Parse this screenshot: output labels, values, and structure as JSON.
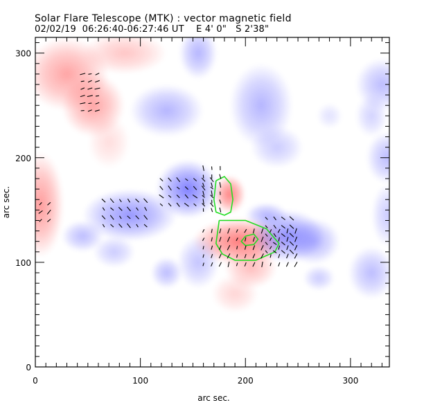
{
  "header": {
    "title": "Solar Flare Telescope (MTK) : vector magnetic field",
    "date": "02/02/19",
    "time_range": "06:26:40-06:27:46 UT",
    "position_ew": "E 4' 0\"",
    "position_ns": "S 2'38\""
  },
  "chart_data": {
    "type": "heatmap",
    "title": "Solar Flare Telescope (MTK) : vector magnetic field",
    "subtitle": "02/02/19  06:26:40-06:27:46 UT    E 4' 0\"   S 2'38\"",
    "xlabel": "arc sec.",
    "ylabel": "arc sec.",
    "xlim": [
      0,
      337
    ],
    "ylim": [
      0,
      315
    ],
    "x_ticks": [
      0,
      100,
      200,
      300
    ],
    "y_ticks": [
      0,
      100,
      200,
      300
    ],
    "x_minor_step": 10,
    "y_minor_step": 10,
    "grid": false,
    "colors": {
      "positive_polarity": "#ff5a5a",
      "negative_polarity": "#6b6bff",
      "contour": "#22dd22",
      "vectors": "#000000"
    },
    "polarity_regions": [
      {
        "sign": "positive",
        "x": 30,
        "y": 280,
        "rx": 40,
        "ry": 35,
        "strength": 0.55
      },
      {
        "sign": "positive",
        "x": 55,
        "y": 250,
        "rx": 30,
        "ry": 30,
        "strength": 0.55
      },
      {
        "sign": "positive",
        "x": 85,
        "y": 300,
        "rx": 40,
        "ry": 20,
        "strength": 0.35
      },
      {
        "sign": "positive",
        "x": 5,
        "y": 155,
        "rx": 22,
        "ry": 50,
        "strength": 0.6
      },
      {
        "sign": "positive",
        "x": 70,
        "y": 215,
        "rx": 20,
        "ry": 25,
        "strength": 0.2
      },
      {
        "sign": "positive",
        "x": 185,
        "y": 165,
        "rx": 15,
        "ry": 18,
        "strength": 0.75
      },
      {
        "sign": "positive",
        "x": 195,
        "y": 120,
        "rx": 45,
        "ry": 22,
        "strength": 0.8
      },
      {
        "sign": "positive",
        "x": 205,
        "y": 95,
        "rx": 25,
        "ry": 20,
        "strength": 0.4
      },
      {
        "sign": "positive",
        "x": 190,
        "y": 70,
        "rx": 22,
        "ry": 18,
        "strength": 0.25
      },
      {
        "sign": "negative",
        "x": 145,
        "y": 170,
        "rx": 30,
        "ry": 28,
        "strength": 0.85
      },
      {
        "sign": "negative",
        "x": 90,
        "y": 145,
        "rx": 45,
        "ry": 25,
        "strength": 0.7
      },
      {
        "sign": "negative",
        "x": 45,
        "y": 125,
        "rx": 20,
        "ry": 15,
        "strength": 0.45
      },
      {
        "sign": "negative",
        "x": 125,
        "y": 245,
        "rx": 35,
        "ry": 25,
        "strength": 0.5
      },
      {
        "sign": "negative",
        "x": 155,
        "y": 300,
        "rx": 18,
        "ry": 25,
        "strength": 0.5
      },
      {
        "sign": "negative",
        "x": 215,
        "y": 250,
        "rx": 30,
        "ry": 40,
        "strength": 0.5
      },
      {
        "sign": "negative",
        "x": 230,
        "y": 210,
        "rx": 25,
        "ry": 20,
        "strength": 0.35
      },
      {
        "sign": "negative",
        "x": 240,
        "y": 125,
        "rx": 35,
        "ry": 25,
        "strength": 0.75
      },
      {
        "sign": "negative",
        "x": 265,
        "y": 120,
        "rx": 25,
        "ry": 22,
        "strength": 0.5
      },
      {
        "sign": "negative",
        "x": 220,
        "y": 145,
        "rx": 20,
        "ry": 12,
        "strength": 0.5
      },
      {
        "sign": "negative",
        "x": 155,
        "y": 100,
        "rx": 20,
        "ry": 25,
        "strength": 0.4
      },
      {
        "sign": "negative",
        "x": 125,
        "y": 90,
        "rx": 15,
        "ry": 15,
        "strength": 0.45
      },
      {
        "sign": "negative",
        "x": 75,
        "y": 110,
        "rx": 20,
        "ry": 15,
        "strength": 0.35
      },
      {
        "sign": "negative",
        "x": 330,
        "y": 270,
        "rx": 25,
        "ry": 25,
        "strength": 0.45
      },
      {
        "sign": "negative",
        "x": 335,
        "y": 200,
        "rx": 20,
        "ry": 25,
        "strength": 0.45
      },
      {
        "sign": "negative",
        "x": 320,
        "y": 240,
        "rx": 15,
        "ry": 20,
        "strength": 0.3
      },
      {
        "sign": "negative",
        "x": 320,
        "y": 90,
        "rx": 22,
        "ry": 25,
        "strength": 0.45
      },
      {
        "sign": "negative",
        "x": 335,
        "y": 145,
        "rx": 15,
        "ry": 30,
        "strength": 0.35
      },
      {
        "sign": "negative",
        "x": 270,
        "y": 85,
        "rx": 15,
        "ry": 12,
        "strength": 0.35
      },
      {
        "sign": "negative",
        "x": 280,
        "y": 240,
        "rx": 12,
        "ry": 12,
        "strength": 0.2
      }
    ],
    "contours": [
      {
        "name": "outer-contour-north",
        "points": [
          [
            172,
            178
          ],
          [
            170,
            160
          ],
          [
            172,
            148
          ],
          [
            180,
            145
          ],
          [
            186,
            148
          ],
          [
            188,
            160
          ],
          [
            186,
            175
          ],
          [
            180,
            182
          ],
          [
            172,
            178
          ]
        ]
      },
      {
        "name": "outer-contour-south",
        "points": [
          [
            175,
            140
          ],
          [
            200,
            140
          ],
          [
            220,
            132
          ],
          [
            232,
            118
          ],
          [
            228,
            110
          ],
          [
            210,
            102
          ],
          [
            190,
            102
          ],
          [
            178,
            108
          ],
          [
            172,
            118
          ],
          [
            175,
            140
          ]
        ]
      },
      {
        "name": "inner-contour",
        "points": [
          [
            200,
            125
          ],
          [
            208,
            127
          ],
          [
            212,
            122
          ],
          [
            208,
            117
          ],
          [
            200,
            116
          ],
          [
            196,
            120
          ],
          [
            200,
            125
          ]
        ]
      }
    ],
    "vector_groups": [
      {
        "name": "vectors-top-left",
        "x_range": [
          45,
          60
        ],
        "y_range": [
          245,
          285
        ],
        "step": 7,
        "angle": 15
      },
      {
        "name": "vectors-left-edge",
        "x_range": [
          5,
          15
        ],
        "y_range": [
          140,
          160
        ],
        "step": 8,
        "angle": 45
      },
      {
        "name": "vectors-mid-left",
        "x_range": [
          65,
          105
        ],
        "y_range": [
          135,
          165
        ],
        "step": 8,
        "angle": -50
      },
      {
        "name": "vectors-center",
        "x_range": [
          120,
          170
        ],
        "y_range": [
          155,
          185
        ],
        "step": 8,
        "angle": -45
      },
      {
        "name": "vectors-delta-north",
        "x_range": [
          160,
          180
        ],
        "y_range": [
          150,
          190
        ],
        "step": 8,
        "angle": -80
      },
      {
        "name": "vectors-delta-south",
        "x_range": [
          160,
          250
        ],
        "y_range": [
          98,
          132
        ],
        "step": 8,
        "angle": 70
      },
      {
        "name": "vectors-east-negative",
        "x_range": [
          220,
          250
        ],
        "y_range": [
          110,
          145
        ],
        "step": 8,
        "angle": -45
      }
    ]
  }
}
